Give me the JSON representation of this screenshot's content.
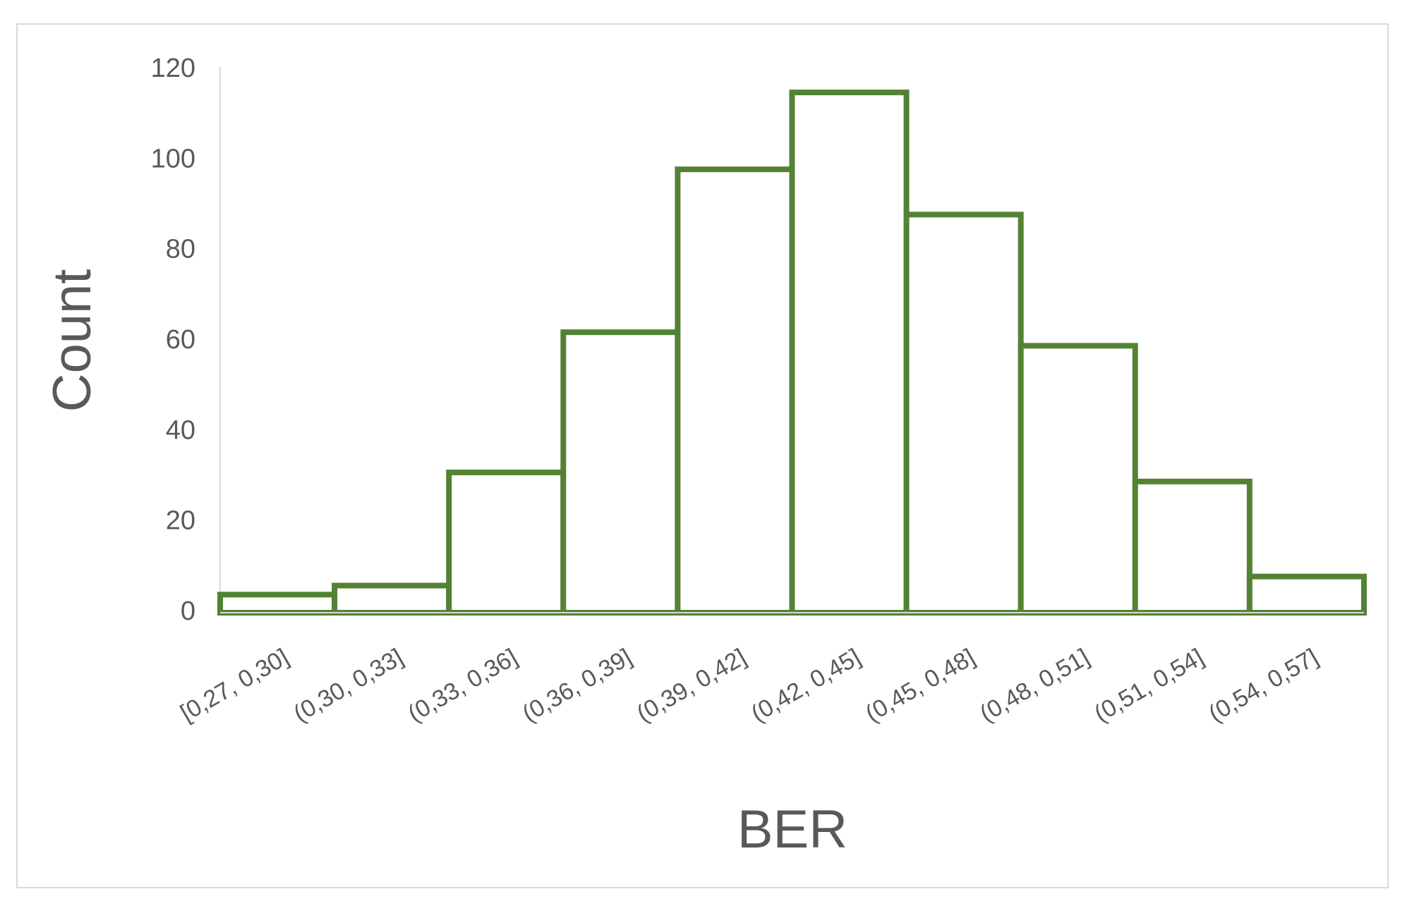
{
  "chart_data": {
    "type": "bar",
    "x_label": "BER",
    "y_label": "Count",
    "categories": [
      "[0,27, 0,30]",
      "(0,30, 0,33]",
      "(0,33, 0,36]",
      "(0,36, 0,39]",
      "(0,39, 0,42]",
      "(0,42, 0,45]",
      "(0,45, 0,48]",
      "(0,48, 0,51]",
      "(0,51, 0,54]",
      "(0,54, 0,57]"
    ],
    "values": [
      4,
      6,
      31,
      62,
      98,
      115,
      88,
      59,
      29,
      8
    ],
    "color": "#548235",
    "ylim": [
      0,
      120
    ],
    "yticks": [
      0,
      20,
      40,
      60,
      80,
      100,
      120
    ],
    "grid": false
  }
}
